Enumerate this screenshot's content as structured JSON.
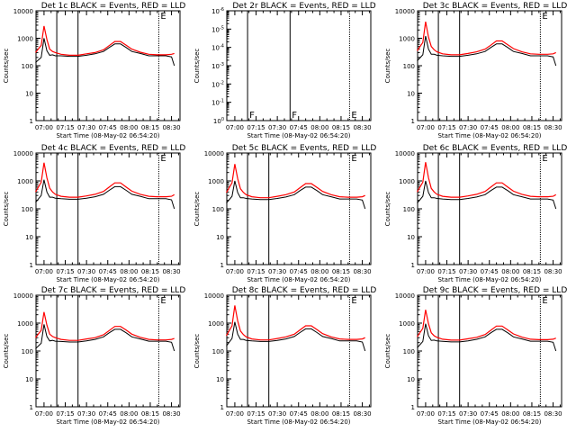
{
  "figure": {
    "colors": {
      "events": "#000000",
      "lld": "#ff0000",
      "axes": "#000000",
      "background": "#ffffff"
    }
  },
  "chart_data": [
    {
      "type": "line",
      "title": "Det 1c BLACK = Events, RED = LLD",
      "xlabel": "Start Time (08-May-02 06:54:20)",
      "ylabel": "Counts/sec",
      "xlim": [
        "06:54:20",
        "08:36:00"
      ],
      "ylim": [
        1,
        10000
      ],
      "yscale": "log",
      "grid": false,
      "x_ticks": [
        "07:00",
        "07:15",
        "07:30",
        "07:45",
        "08:00",
        "08:15",
        "08:30"
      ],
      "y_ticks": [
        "1",
        "10",
        "100",
        "1000",
        "10000"
      ],
      "markers": [
        {
          "time": "07:09",
          "label": ""
        },
        {
          "time": "07:24",
          "label": ""
        },
        {
          "time": "08:21",
          "label": "E"
        }
      ],
      "x": [
        "06:54",
        "06:58",
        "07:00",
        "07:02",
        "07:04",
        "07:06",
        "07:08",
        "07:12",
        "07:18",
        "07:24",
        "07:30",
        "07:36",
        "07:42",
        "07:46",
        "07:50",
        "07:54",
        "07:58",
        "08:02",
        "08:08",
        "08:14",
        "08:20",
        "08:26",
        "08:30",
        "08:32"
      ],
      "series": [
        {
          "name": "BLACK = Events",
          "values": [
            130,
            200,
            1000,
            350,
            240,
            250,
            230,
            230,
            220,
            220,
            240,
            270,
            330,
            460,
            620,
            620,
            460,
            330,
            280,
            230,
            230,
            230,
            210,
            100
          ]
        },
        {
          "name": "RED = LLD",
          "values": [
            300,
            550,
            2800,
            900,
            400,
            330,
            300,
            260,
            240,
            240,
            270,
            300,
            380,
            540,
            760,
            760,
            560,
            400,
            310,
            260,
            250,
            250,
            260,
            280
          ]
        }
      ]
    },
    {
      "type": "line",
      "title": "Det 2r BLACK = Events, RED = LLD",
      "xlabel": "Start Time (08-May-02 06:54:20)",
      "ylabel": "Counts/sec",
      "xlim": [
        "06:54:20",
        "08:36:00"
      ],
      "ylim": [
        1,
        1e-06
      ],
      "yscale": "log",
      "grid": false,
      "x_ticks": [
        "07:00",
        "07:15",
        "07:30",
        "07:45",
        "08:00",
        "08:15",
        "08:30"
      ],
      "y_ticks": [
        "10^0",
        "10^-1",
        "10^-2",
        "10^-3",
        "10^-4",
        "10^-5",
        "10^-6"
      ],
      "markers": [
        {
          "time": "07:09",
          "label": "F"
        },
        {
          "time": "07:39",
          "label": "F"
        },
        {
          "time": "08:21",
          "label": "E"
        }
      ],
      "x": [],
      "series": []
    },
    {
      "type": "line",
      "title": "Det 3c BLACK = Events, RED = LLD",
      "xlabel": "Start Time (08-May-02 06:54:20)",
      "ylabel": "Counts/sec",
      "xlim": [
        "06:54:20",
        "08:36:00"
      ],
      "ylim": [
        1,
        10000
      ],
      "yscale": "log",
      "grid": false,
      "x_ticks": [
        "07:00",
        "07:15",
        "07:30",
        "07:45",
        "08:00",
        "08:15",
        "08:30"
      ],
      "y_ticks": [
        "1",
        "10",
        "100",
        "1000",
        "10000"
      ],
      "markers": [
        {
          "time": "07:09",
          "label": ""
        },
        {
          "time": "07:24",
          "label": ""
        },
        {
          "time": "08:21",
          "label": "E"
        }
      ],
      "x": [
        "06:54",
        "06:58",
        "07:00",
        "07:02",
        "07:04",
        "07:06",
        "07:08",
        "07:12",
        "07:18",
        "07:24",
        "07:30",
        "07:36",
        "07:42",
        "07:46",
        "07:50",
        "07:54",
        "07:58",
        "08:02",
        "08:08",
        "08:14",
        "08:20",
        "08:26",
        "08:30",
        "08:32"
      ],
      "series": [
        {
          "name": "BLACK = Events",
          "values": [
            150,
            250,
            1200,
            400,
            260,
            260,
            240,
            230,
            220,
            220,
            240,
            270,
            330,
            460,
            620,
            620,
            460,
            330,
            280,
            230,
            230,
            230,
            210,
            100
          ]
        },
        {
          "name": "RED = LLD",
          "values": [
            350,
            700,
            4000,
            1100,
            500,
            380,
            320,
            270,
            250,
            250,
            280,
            320,
            400,
            560,
            800,
            800,
            580,
            420,
            320,
            270,
            260,
            260,
            270,
            300
          ]
        }
      ]
    },
    {
      "type": "line",
      "title": "Det 4c BLACK = Events, RED = LLD",
      "xlabel": "Start Time (08-May-02 06:54:20)",
      "ylabel": "Counts/sec",
      "xlim": [
        "06:54:20",
        "08:36:00"
      ],
      "ylim": [
        1,
        10000
      ],
      "yscale": "log",
      "grid": false,
      "x_ticks": [
        "07:00",
        "07:15",
        "07:30",
        "07:45",
        "08:00",
        "08:15",
        "08:30"
      ],
      "y_ticks": [
        "1",
        "10",
        "100",
        "1000",
        "10000"
      ],
      "markers": [
        {
          "time": "07:09",
          "label": ""
        },
        {
          "time": "07:24",
          "label": ""
        },
        {
          "time": "08:21",
          "label": "E"
        }
      ],
      "x": [
        "06:54",
        "06:58",
        "07:00",
        "07:02",
        "07:04",
        "07:06",
        "07:08",
        "07:12",
        "07:18",
        "07:24",
        "07:30",
        "07:36",
        "07:42",
        "07:46",
        "07:50",
        "07:54",
        "07:58",
        "08:02",
        "08:08",
        "08:14",
        "08:20",
        "08:26",
        "08:30",
        "08:32"
      ],
      "series": [
        {
          "name": "BLACK = Events",
          "values": [
            170,
            300,
            1100,
            400,
            260,
            260,
            240,
            230,
            220,
            220,
            240,
            270,
            330,
            460,
            620,
            620,
            460,
            330,
            280,
            230,
            230,
            230,
            210,
            100
          ]
        },
        {
          "name": "RED = LLD",
          "values": [
            400,
            900,
            4500,
            1300,
            550,
            400,
            330,
            280,
            260,
            260,
            290,
            330,
            420,
            600,
            850,
            850,
            600,
            430,
            330,
            280,
            270,
            270,
            280,
            320
          ]
        }
      ]
    },
    {
      "type": "line",
      "title": "Det 5c BLACK = Events, RED = LLD",
      "xlabel": "Start Time (08-May-02 06:54:20)",
      "ylabel": "Counts/sec",
      "xlim": [
        "06:54:20",
        "08:36:00"
      ],
      "ylim": [
        1,
        10000
      ],
      "yscale": "log",
      "grid": false,
      "x_ticks": [
        "07:00",
        "07:15",
        "07:30",
        "07:45",
        "08:00",
        "08:15",
        "08:30"
      ],
      "y_ticks": [
        "1",
        "10",
        "100",
        "1000",
        "10000"
      ],
      "markers": [
        {
          "time": "07:09",
          "label": ""
        },
        {
          "time": "07:24",
          "label": ""
        },
        {
          "time": "08:21",
          "label": "E"
        }
      ],
      "x": [
        "06:54",
        "06:58",
        "07:00",
        "07:02",
        "07:04",
        "07:06",
        "07:08",
        "07:12",
        "07:18",
        "07:24",
        "07:30",
        "07:36",
        "07:42",
        "07:46",
        "07:50",
        "07:54",
        "07:58",
        "08:02",
        "08:08",
        "08:14",
        "08:20",
        "08:26",
        "08:30",
        "08:32"
      ],
      "series": [
        {
          "name": "BLACK = Events",
          "values": [
            160,
            280,
            1000,
            380,
            250,
            250,
            235,
            225,
            215,
            215,
            235,
            265,
            320,
            450,
            600,
            600,
            450,
            320,
            270,
            225,
            225,
            225,
            205,
            100
          ]
        },
        {
          "name": "RED = LLD",
          "values": [
            380,
            850,
            4000,
            1200,
            520,
            390,
            320,
            270,
            250,
            250,
            280,
            320,
            400,
            570,
            800,
            800,
            580,
            420,
            320,
            270,
            260,
            260,
            270,
            300
          ]
        }
      ]
    },
    {
      "type": "line",
      "title": "Det 6c BLACK = Events, RED = LLD",
      "xlabel": "Start Time (08-May-02 06:54:20)",
      "ylabel": "Counts/sec",
      "xlim": [
        "06:54:20",
        "08:36:00"
      ],
      "ylim": [
        1,
        10000
      ],
      "yscale": "log",
      "grid": false,
      "x_ticks": [
        "07:00",
        "07:15",
        "07:30",
        "07:45",
        "08:00",
        "08:15",
        "08:30"
      ],
      "y_ticks": [
        "1",
        "10",
        "100",
        "1000",
        "10000"
      ],
      "markers": [
        {
          "time": "07:09",
          "label": ""
        },
        {
          "time": "07:24",
          "label": ""
        },
        {
          "time": "08:21",
          "label": "E"
        }
      ],
      "x": [
        "06:54",
        "06:58",
        "07:00",
        "07:02",
        "07:04",
        "07:06",
        "07:08",
        "07:12",
        "07:18",
        "07:24",
        "07:30",
        "07:36",
        "07:42",
        "07:46",
        "07:50",
        "07:54",
        "07:58",
        "08:02",
        "08:08",
        "08:14",
        "08:20",
        "08:26",
        "08:30",
        "08:32"
      ],
      "series": [
        {
          "name": "BLACK = Events",
          "values": [
            160,
            280,
            1000,
            380,
            250,
            250,
            235,
            225,
            215,
            215,
            235,
            265,
            320,
            450,
            600,
            600,
            450,
            320,
            270,
            225,
            225,
            225,
            205,
            100
          ]
        },
        {
          "name": "RED = LLD",
          "values": [
            400,
            900,
            4700,
            1300,
            540,
            400,
            330,
            280,
            260,
            260,
            290,
            330,
            420,
            600,
            850,
            850,
            600,
            430,
            330,
            280,
            270,
            270,
            280,
            320
          ]
        }
      ]
    },
    {
      "type": "line",
      "title": "Det 7c BLACK = Events, RED = LLD",
      "xlabel": "Start Time (08-May-02 06:54:20)",
      "ylabel": "Counts/sec",
      "xlim": [
        "06:54:20",
        "08:36:00"
      ],
      "ylim": [
        1,
        10000
      ],
      "yscale": "log",
      "grid": false,
      "x_ticks": [
        "07:00",
        "07:15",
        "07:30",
        "07:45",
        "08:00",
        "08:15",
        "08:30"
      ],
      "y_ticks": [
        "1",
        "10",
        "100",
        "1000",
        "10000"
      ],
      "markers": [
        {
          "time": "07:09",
          "label": ""
        },
        {
          "time": "07:24",
          "label": ""
        },
        {
          "time": "08:21",
          "label": "E"
        }
      ],
      "x": [
        "06:54",
        "06:58",
        "07:00",
        "07:02",
        "07:04",
        "07:06",
        "07:08",
        "07:12",
        "07:18",
        "07:24",
        "07:30",
        "07:36",
        "07:42",
        "07:46",
        "07:50",
        "07:54",
        "07:58",
        "08:02",
        "08:08",
        "08:14",
        "08:20",
        "08:26",
        "08:30",
        "08:32"
      ],
      "series": [
        {
          "name": "BLACK = Events",
          "values": [
            120,
            190,
            900,
            330,
            230,
            240,
            225,
            220,
            210,
            210,
            230,
            260,
            320,
            450,
            600,
            600,
            450,
            320,
            270,
            225,
            225,
            225,
            205,
            100
          ]
        },
        {
          "name": "RED = LLD",
          "values": [
            300,
            550,
            2500,
            850,
            400,
            330,
            300,
            260,
            240,
            240,
            270,
            300,
            380,
            540,
            760,
            760,
            560,
            400,
            310,
            260,
            250,
            250,
            260,
            280
          ]
        }
      ]
    },
    {
      "type": "line",
      "title": "Det 8c BLACK = Events, RED = LLD",
      "xlabel": "Start Time (08-May-02 06:54:20)",
      "ylabel": "Counts/sec",
      "xlim": [
        "06:54:20",
        "08:36:00"
      ],
      "ylim": [
        1,
        10000
      ],
      "yscale": "log",
      "grid": false,
      "x_ticks": [
        "07:00",
        "07:15",
        "07:30",
        "07:45",
        "08:00",
        "08:15",
        "08:30"
      ],
      "y_ticks": [
        "1",
        "10",
        "100",
        "1000",
        "10000"
      ],
      "markers": [
        {
          "time": "07:09",
          "label": ""
        },
        {
          "time": "07:24",
          "label": ""
        },
        {
          "time": "08:21",
          "label": "E"
        }
      ],
      "x": [
        "06:54",
        "06:58",
        "07:00",
        "07:02",
        "07:04",
        "07:06",
        "07:08",
        "07:12",
        "07:18",
        "07:24",
        "07:30",
        "07:36",
        "07:42",
        "07:46",
        "07:50",
        "07:54",
        "07:58",
        "08:02",
        "08:08",
        "08:14",
        "08:20",
        "08:26",
        "08:30",
        "08:32"
      ],
      "series": [
        {
          "name": "BLACK = Events",
          "values": [
            150,
            280,
            1100,
            400,
            260,
            260,
            240,
            230,
            220,
            220,
            240,
            270,
            330,
            460,
            620,
            620,
            460,
            330,
            280,
            230,
            230,
            230,
            210,
            100
          ]
        },
        {
          "name": "RED = LLD",
          "values": [
            350,
            800,
            4300,
            1200,
            520,
            390,
            320,
            270,
            250,
            250,
            280,
            320,
            400,
            570,
            800,
            800,
            580,
            420,
            320,
            270,
            260,
            260,
            270,
            300
          ]
        }
      ]
    },
    {
      "type": "line",
      "title": "Det 9c BLACK = Events, RED = LLD",
      "xlabel": "Start Time (08-May-02 06:54:20)",
      "ylabel": "Counts/sec",
      "xlim": [
        "06:54:20",
        "08:36:00"
      ],
      "ylim": [
        1,
        10000
      ],
      "yscale": "log",
      "grid": false,
      "x_ticks": [
        "07:00",
        "07:15",
        "07:30",
        "07:45",
        "08:00",
        "08:15",
        "08:30"
      ],
      "y_ticks": [
        "1",
        "10",
        "100",
        "1000",
        "10000"
      ],
      "markers": [
        {
          "time": "07:09",
          "label": ""
        },
        {
          "time": "07:24",
          "label": ""
        },
        {
          "time": "08:21",
          "label": "E"
        }
      ],
      "x": [
        "06:54",
        "06:58",
        "07:00",
        "07:02",
        "07:04",
        "07:06",
        "07:08",
        "07:12",
        "07:18",
        "07:24",
        "07:30",
        "07:36",
        "07:42",
        "07:46",
        "07:50",
        "07:54",
        "07:58",
        "08:02",
        "08:08",
        "08:14",
        "08:20",
        "08:26",
        "08:30",
        "08:32"
      ],
      "series": [
        {
          "name": "BLACK = Events",
          "values": [
            130,
            220,
            950,
            350,
            240,
            245,
            230,
            222,
            212,
            212,
            232,
            262,
            320,
            450,
            600,
            600,
            450,
            320,
            270,
            225,
            225,
            225,
            205,
            100
          ]
        },
        {
          "name": "RED = LLD",
          "values": [
            320,
            650,
            3000,
            950,
            450,
            350,
            310,
            265,
            245,
            245,
            275,
            310,
            390,
            550,
            780,
            780,
            570,
            410,
            315,
            265,
            255,
            255,
            265,
            290
          ]
        }
      ]
    }
  ]
}
